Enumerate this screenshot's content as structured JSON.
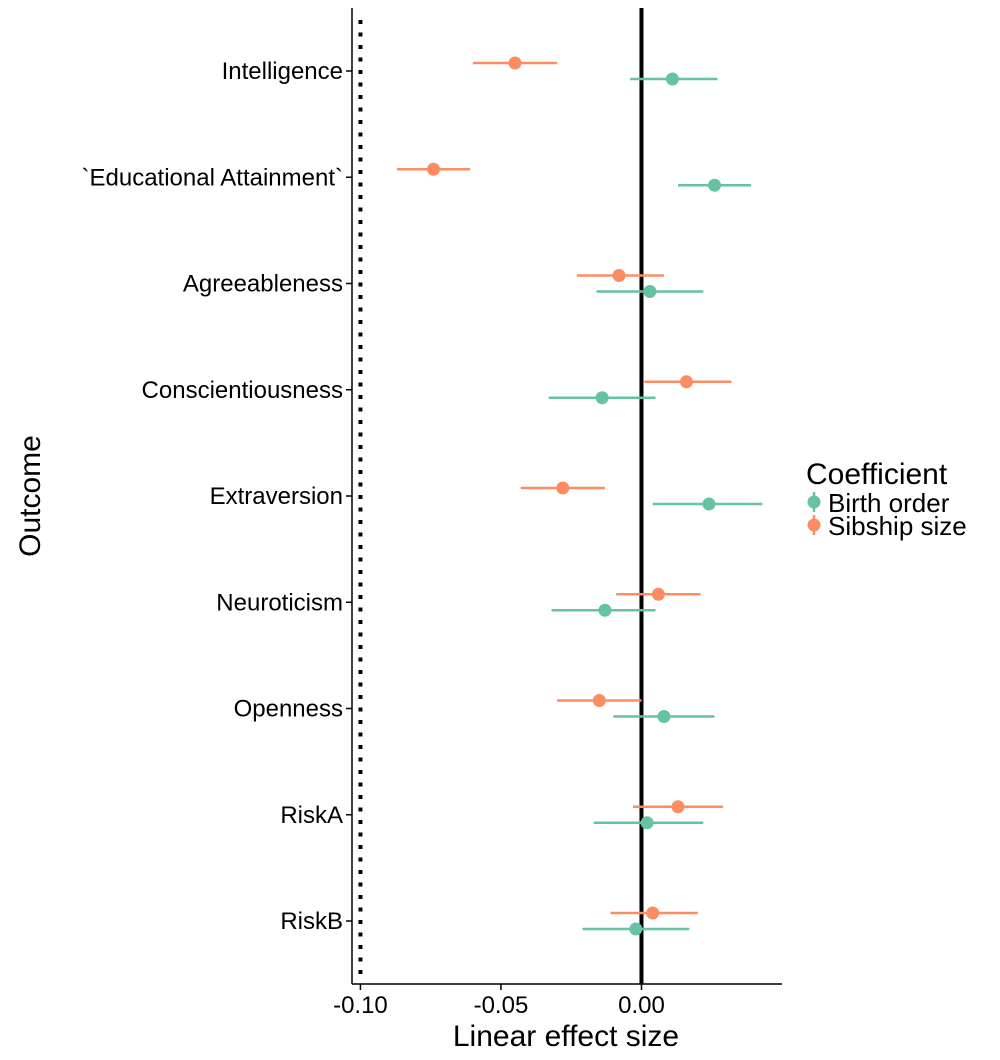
{
  "chart_data": {
    "type": "forest",
    "orientation": "horizontal",
    "title": "",
    "xlabel": "Linear effect size",
    "ylabel": "Outcome",
    "xlim": [
      -0.103,
      0.05
    ],
    "x_ticks": [
      -0.1,
      -0.05,
      0.0
    ],
    "x_tick_labels": [
      "-0.10",
      "-0.05",
      "0.00"
    ],
    "reference_lines": [
      {
        "x": 0.0,
        "style": "solid"
      },
      {
        "x": -0.1,
        "style": "dotted"
      }
    ],
    "grid": false,
    "legend": {
      "title": "Coefficient",
      "position": "right"
    },
    "categories": [
      "Intelligence",
      "`Educational Attainment`",
      "Agreeableness",
      "Conscientiousness",
      "Extraversion",
      "Neuroticism",
      "Openness",
      "RiskA",
      "RiskB"
    ],
    "series": [
      {
        "name": "Birth order",
        "color": "#66c2a5",
        "estimates": [
          0.011,
          0.026,
          0.003,
          -0.014,
          0.024,
          -0.013,
          0.008,
          0.002,
          -0.002
        ],
        "lower": [
          -0.004,
          0.013,
          -0.016,
          -0.033,
          0.004,
          -0.032,
          -0.01,
          -0.017,
          -0.021
        ],
        "upper": [
          0.027,
          0.039,
          0.022,
          0.005,
          0.043,
          0.005,
          0.026,
          0.022,
          0.017
        ]
      },
      {
        "name": "Sibship size",
        "color": "#fc8d62",
        "estimates": [
          -0.045,
          -0.074,
          -0.008,
          0.016,
          -0.028,
          0.006,
          -0.015,
          0.013,
          0.004
        ],
        "lower": [
          -0.06,
          -0.087,
          -0.023,
          0.001,
          -0.043,
          -0.009,
          -0.03,
          -0.003,
          -0.011
        ],
        "upper": [
          -0.03,
          -0.061,
          0.008,
          0.032,
          -0.013,
          0.021,
          0.0,
          0.029,
          0.02
        ]
      }
    ]
  }
}
